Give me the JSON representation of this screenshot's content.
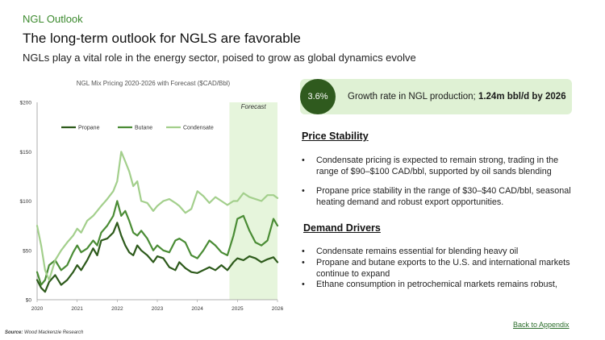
{
  "header": {
    "kicker": "NGL Outlook",
    "title": "The long-term outlook for NGLS are favorable",
    "subtitle": "NGLs play a vital role in the energy sector, poised to grow as global dynamics evolve"
  },
  "chart_data": {
    "type": "line",
    "title": "NGL Mix Pricing 2020-2026 with Forecast ($CAD/Bbl)",
    "x_ticks": [
      "2020",
      "2021",
      "2022",
      "2023",
      "2024",
      "2025",
      "2026"
    ],
    "y_ticks": [
      "$0",
      "$50",
      "$100",
      "$150",
      "$200"
    ],
    "ylim": [
      0,
      200
    ],
    "xlim": [
      2020,
      2026
    ],
    "forecast_label": "Forecast",
    "forecast_start": 2024.8,
    "legend_position": "top-left",
    "grid": false,
    "series": [
      {
        "name": "Propane",
        "color": "#2d5a1b",
        "x": [
          2020.0,
          2020.1,
          2020.2,
          2020.3,
          2020.45,
          2020.6,
          2020.75,
          2020.9,
          2021.0,
          2021.1,
          2021.25,
          2021.4,
          2021.5,
          2021.6,
          2021.75,
          2021.9,
          2022.0,
          2022.1,
          2022.2,
          2022.3,
          2022.4,
          2022.5,
          2022.6,
          2022.75,
          2022.9,
          2023.0,
          2023.15,
          2023.3,
          2023.45,
          2023.55,
          2023.7,
          2023.85,
          2024.0,
          2024.15,
          2024.3,
          2024.45,
          2024.6,
          2024.75,
          2024.9,
          2025.0,
          2025.15,
          2025.3,
          2025.45,
          2025.6,
          2025.75,
          2025.9,
          2026.0
        ],
        "y": [
          20,
          12,
          8,
          18,
          25,
          15,
          20,
          28,
          35,
          30,
          40,
          52,
          45,
          60,
          62,
          68,
          78,
          65,
          55,
          48,
          45,
          55,
          50,
          45,
          38,
          44,
          42,
          33,
          30,
          38,
          32,
          28,
          27,
          30,
          33,
          30,
          35,
          30,
          38,
          42,
          40,
          44,
          42,
          38,
          41,
          43,
          38
        ]
      },
      {
        "name": "Butane",
        "color": "#4a8c35",
        "x": [
          2020.0,
          2020.1,
          2020.2,
          2020.3,
          2020.45,
          2020.6,
          2020.75,
          2020.9,
          2021.0,
          2021.1,
          2021.25,
          2021.4,
          2021.5,
          2021.6,
          2021.75,
          2021.9,
          2022.0,
          2022.1,
          2022.2,
          2022.3,
          2022.4,
          2022.5,
          2022.6,
          2022.75,
          2022.9,
          2023.0,
          2023.15,
          2023.3,
          2023.45,
          2023.55,
          2023.7,
          2023.85,
          2024.0,
          2024.15,
          2024.3,
          2024.45,
          2024.6,
          2024.75,
          2024.9,
          2025.0,
          2025.15,
          2025.3,
          2025.45,
          2025.6,
          2025.75,
          2025.9,
          2026.0
        ],
        "y": [
          28,
          15,
          20,
          35,
          40,
          30,
          35,
          48,
          55,
          48,
          52,
          60,
          55,
          68,
          75,
          85,
          100,
          85,
          90,
          80,
          68,
          65,
          70,
          62,
          50,
          55,
          50,
          48,
          60,
          62,
          58,
          45,
          42,
          50,
          60,
          55,
          48,
          45,
          65,
          82,
          85,
          70,
          58,
          55,
          60,
          82,
          75
        ]
      },
      {
        "name": "Condensate",
        "color": "#a3cf8c",
        "x": [
          2020.0,
          2020.1,
          2020.2,
          2020.3,
          2020.45,
          2020.6,
          2020.75,
          2020.9,
          2021.0,
          2021.1,
          2021.25,
          2021.4,
          2021.5,
          2021.6,
          2021.75,
          2021.9,
          2022.0,
          2022.1,
          2022.2,
          2022.3,
          2022.4,
          2022.5,
          2022.6,
          2022.75,
          2022.9,
          2023.0,
          2023.15,
          2023.3,
          2023.45,
          2023.55,
          2023.7,
          2023.85,
          2024.0,
          2024.15,
          2024.3,
          2024.45,
          2024.6,
          2024.75,
          2024.9,
          2025.0,
          2025.15,
          2025.3,
          2025.45,
          2025.6,
          2025.75,
          2025.9,
          2026.0
        ],
        "y": [
          75,
          55,
          30,
          20,
          40,
          50,
          58,
          65,
          72,
          68,
          80,
          85,
          90,
          95,
          102,
          110,
          120,
          150,
          140,
          130,
          115,
          120,
          100,
          98,
          90,
          95,
          100,
          102,
          98,
          95,
          88,
          92,
          110,
          105,
          98,
          104,
          100,
          96,
          100,
          100,
          108,
          104,
          102,
          100,
          106,
          106,
          103
        ]
      }
    ]
  },
  "callout": {
    "badge": "3.6%",
    "text": "Growth rate in NGL production; ",
    "text_bold": "1.24m bbl/d by 2026"
  },
  "price_stability": {
    "heading": "Price Stability",
    "bullets": [
      "Condensate pricing is expected to remain strong, trading in the range of $90–$100 CAD/bbl, supported by oil sands blending",
      "Propane price stability in the range of $30–$40 CAD/bbl, seasonal heating demand and robust export opportunities."
    ]
  },
  "demand_drivers": {
    "heading": "Demand Drivers",
    "bullets": [
      "Condensate remains essential for blending heavy oil",
      "Propane and butane exports to the U.S. and international markets continue to expand",
      "Ethane consumption in petrochemical markets remains robust,"
    ]
  },
  "footer": {
    "source_label": "Source:",
    "source_text": " Wood Mackenzie Research",
    "back_link": "Back to Appendix"
  }
}
